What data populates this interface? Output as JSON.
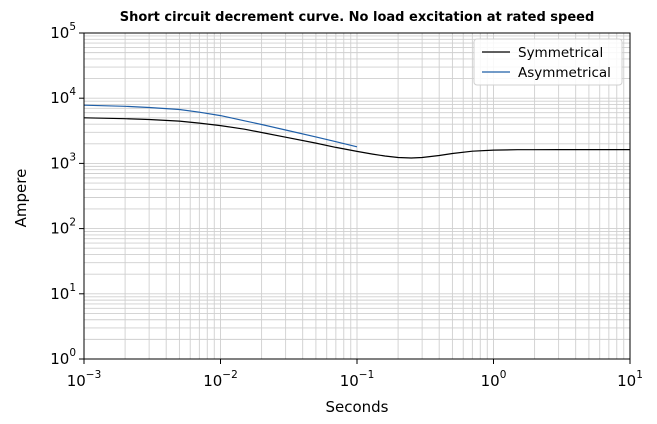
{
  "chart_data": {
    "type": "line",
    "title": "Short circuit decrement curve. No load excitation at rated speed",
    "xlabel": "Seconds",
    "ylabel": "Ampere",
    "xscale": "log",
    "yscale": "log",
    "xlim": [
      0.001,
      10
    ],
    "ylim": [
      1,
      100000
    ],
    "grid": true,
    "legend_position": "top-right",
    "x_ticks": [
      {
        "value": 0.001,
        "base": "10",
        "exp": "−3"
      },
      {
        "value": 0.01,
        "base": "10",
        "exp": "−2"
      },
      {
        "value": 0.1,
        "base": "10",
        "exp": "−1"
      },
      {
        "value": 1,
        "base": "10",
        "exp": "0"
      },
      {
        "value": 10,
        "base": "10",
        "exp": "1"
      }
    ],
    "y_ticks": [
      {
        "value": 1,
        "base": "10",
        "exp": "0"
      },
      {
        "value": 10,
        "base": "10",
        "exp": "1"
      },
      {
        "value": 100,
        "base": "10",
        "exp": "2"
      },
      {
        "value": 1000,
        "base": "10",
        "exp": "3"
      },
      {
        "value": 10000,
        "base": "10",
        "exp": "4"
      },
      {
        "value": 100000,
        "base": "10",
        "exp": "5"
      }
    ],
    "series": [
      {
        "name": "Symmetrical",
        "color": "#000000",
        "x": [
          0.001,
          0.002,
          0.003,
          0.005,
          0.007,
          0.01,
          0.015,
          0.02,
          0.03,
          0.05,
          0.07,
          0.1,
          0.13,
          0.16,
          0.2,
          0.25,
          0.3,
          0.4,
          0.5,
          0.7,
          1,
          1.5,
          2,
          3,
          5,
          10
        ],
        "y": [
          5000,
          4850,
          4720,
          4450,
          4150,
          3800,
          3350,
          2980,
          2520,
          2050,
          1760,
          1530,
          1390,
          1300,
          1230,
          1210,
          1230,
          1320,
          1420,
          1540,
          1600,
          1620,
          1625,
          1630,
          1630,
          1630
        ]
      },
      {
        "name": "Asymmetrical",
        "color": "#1f5fa8",
        "x": [
          0.001,
          0.002,
          0.003,
          0.005,
          0.007,
          0.01,
          0.015,
          0.02,
          0.03,
          0.05,
          0.07,
          0.1
        ],
        "y": [
          7800,
          7500,
          7200,
          6700,
          6100,
          5400,
          4500,
          3950,
          3250,
          2550,
          2150,
          1800
        ]
      }
    ]
  }
}
